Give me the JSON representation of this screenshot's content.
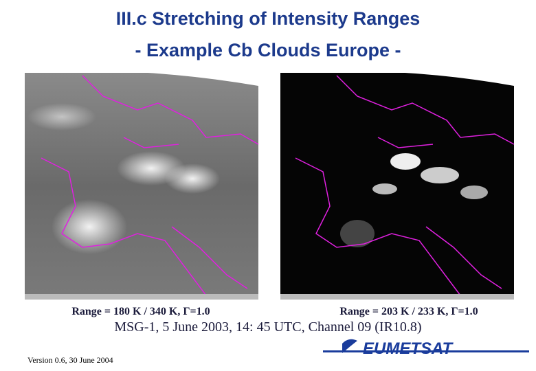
{
  "header": {
    "title_line1": "III.c Stretching of Intensity Ranges",
    "title_line2": "- Example Cb Clouds Europe -"
  },
  "images": [
    {
      "caption": "Range = 180 K / 340 K, Γ=1.0"
    },
    {
      "caption": "Range = 203 K / 233 K, Γ=1.0"
    }
  ],
  "subtitle": "MSG-1, 5 June 2003, 14: 45 UTC, Channel 09 (IR10.8)",
  "footer": {
    "version": "Version 0.6, 30 June 2004",
    "logo": "EUMETSAT"
  }
}
